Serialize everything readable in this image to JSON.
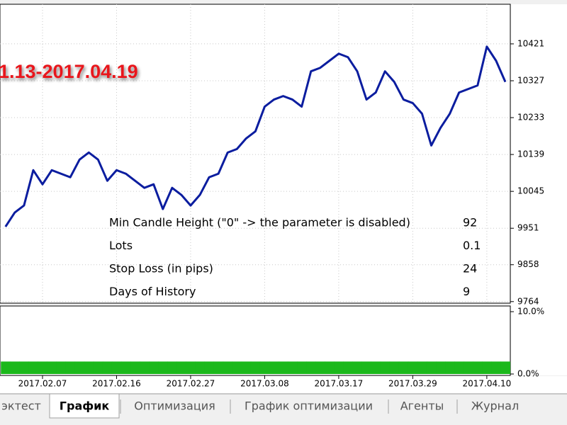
{
  "overlay_text": "1.13-2017.04.19",
  "chart_data": [
    {
      "type": "line",
      "categories": [
        null,
        null,
        null,
        null,
        "2017.02.07",
        null,
        null,
        null,
        null,
        null,
        null,
        null,
        "2017.02.16",
        null,
        null,
        null,
        null,
        null,
        null,
        null,
        "2017.02.27",
        null,
        null,
        null,
        null,
        null,
        null,
        null,
        "2017.03.08",
        null,
        null,
        null,
        null,
        null,
        null,
        null,
        "2017.03.17",
        null,
        null,
        null,
        null,
        null,
        null,
        null,
        "2017.03.29",
        null,
        null,
        null,
        null,
        null,
        null,
        null,
        "2017.04.10",
        null,
        null
      ],
      "series": [
        {
          "color": "#0b1d9f",
          "values": [
            9955,
            9991,
            10009,
            10099,
            10063,
            10099,
            10090,
            10081,
            10126,
            10144,
            10126,
            10072,
            10099,
            10090,
            10072,
            10054,
            10063,
            10000,
            10054,
            10036,
            10009,
            10036,
            10081,
            10090,
            10144,
            10153,
            10180,
            10198,
            10261,
            10279,
            10288,
            10279,
            10261,
            10351,
            10360,
            10378,
            10396,
            10387,
            10351,
            10279,
            10297,
            10351,
            10324,
            10279,
            10270,
            10243,
            10162,
            10207,
            10243,
            10297,
            10306,
            10315,
            10414,
            10378,
            10324
          ]
        }
      ],
      "ylim": [
        9760,
        10522
      ],
      "yticks": [
        10421,
        10327,
        10233,
        10139,
        10045,
        9951,
        9858,
        9764
      ],
      "grid": true
    },
    {
      "type": "bar",
      "color": "#1bb81b",
      "values": [
        2,
        2,
        2,
        2,
        2,
        2,
        2,
        2,
        2,
        2,
        2,
        2,
        2,
        2,
        2,
        2,
        2,
        2,
        2,
        2,
        2,
        2,
        2,
        2,
        2,
        2,
        2,
        2,
        2,
        2,
        2,
        2,
        2,
        2,
        2,
        2,
        2,
        2,
        2,
        2,
        2,
        2,
        2,
        2,
        2,
        2,
        2,
        2,
        2,
        2,
        2,
        2,
        2,
        2,
        2
      ],
      "ylim": [
        0,
        10
      ],
      "yticks": [
        {
          "value": 10,
          "label": "10.0%"
        },
        {
          "value": 0,
          "label": "0.0%"
        }
      ]
    }
  ],
  "parameters": {
    "rows": [
      [
        "Min Candle Height (\"0\" -> the parameter is disabled)",
        "92"
      ],
      [
        "Lots",
        "0.1"
      ],
      [
        "Stop Loss (in pips)",
        "24"
      ],
      [
        "Days of History",
        "9"
      ]
    ]
  },
  "tabs": [
    "эктест",
    "График",
    "Оптимизация",
    "График оптимизации",
    "Агенты",
    "Журнал"
  ]
}
